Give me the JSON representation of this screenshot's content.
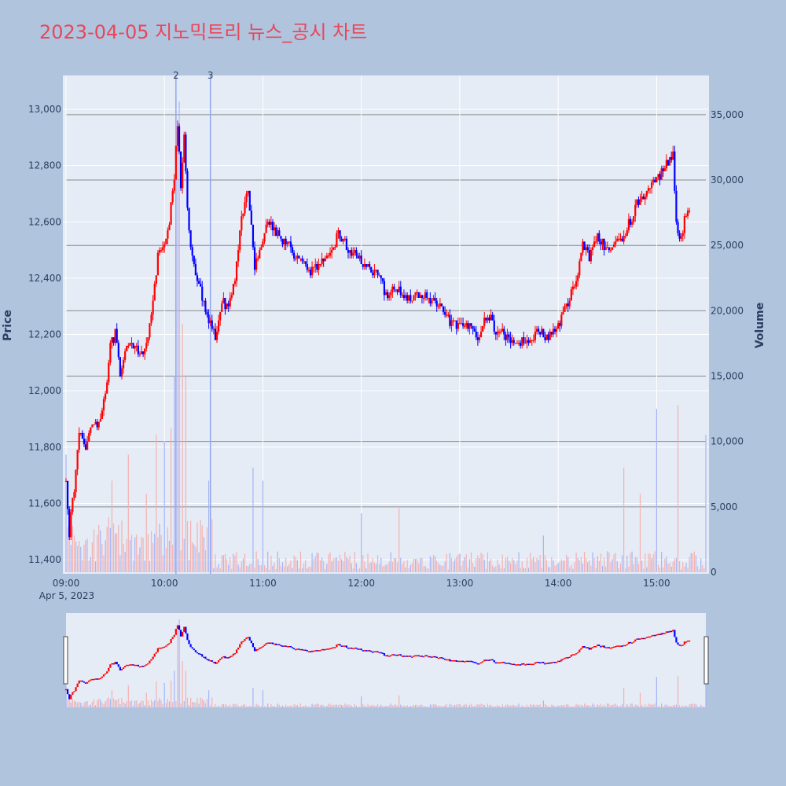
{
  "chart_data": {
    "type": "candlestick",
    "title": "2023-04-05 지노믹트리 뉴스_공시 차트",
    "ylabel": "Price",
    "y2label": "Volume",
    "date_label": "Apr 5, 2023",
    "x_ticks": [
      "09:00",
      "10:00",
      "11:00",
      "12:00",
      "13:00",
      "14:00",
      "15:00"
    ],
    "price_ticks": [
      11400,
      11600,
      11800,
      12000,
      12200,
      12400,
      12600,
      12800,
      13000
    ],
    "price_tick_labels": [
      "11,400",
      "11,600",
      "11,800",
      "12,000",
      "12,200",
      "12,400",
      "12,600",
      "12,800",
      "13,000"
    ],
    "volume_ticks": [
      0,
      5000,
      10000,
      15000,
      20000,
      25000,
      30000,
      35000
    ],
    "volume_tick_labels": [
      "0",
      "5,000",
      "10,000",
      "15,000",
      "20,000",
      "25,000",
      "30,000",
      "35,000"
    ],
    "price_range": [
      11350,
      13120
    ],
    "volume_range": [
      0,
      38000
    ],
    "time_range": [
      "09:00",
      "15:30"
    ],
    "up_color": "#ff0000",
    "down_color": "#0000ff",
    "news_markers": [
      {
        "label": "2",
        "time": "10:07"
      },
      {
        "label": "3",
        "time": "10:28"
      }
    ],
    "price_path": [
      [
        "09:00",
        11700
      ],
      [
        "09:02",
        11500
      ],
      [
        "09:05",
        11650
      ],
      [
        "09:08",
        11850
      ],
      [
        "09:12",
        11800
      ],
      [
        "09:16",
        11900
      ],
      [
        "09:20",
        11880
      ],
      [
        "09:24",
        12000
      ],
      [
        "09:27",
        12150
      ],
      [
        "09:30",
        12200
      ],
      [
        "09:33",
        12050
      ],
      [
        "09:37",
        12150
      ],
      [
        "09:42",
        12170
      ],
      [
        "09:46",
        12130
      ],
      [
        "09:50",
        12200
      ],
      [
        "09:53",
        12300
      ],
      [
        "09:56",
        12480
      ],
      [
        "10:00",
        12500
      ],
      [
        "10:03",
        12600
      ],
      [
        "10:06",
        12750
      ],
      [
        "10:08",
        12950
      ],
      [
        "10:10",
        12720
      ],
      [
        "10:12",
        12900
      ],
      [
        "10:15",
        12550
      ],
      [
        "10:18",
        12450
      ],
      [
        "10:21",
        12380
      ],
      [
        "10:24",
        12300
      ],
      [
        "10:27",
        12250
      ],
      [
        "10:31",
        12180
      ],
      [
        "10:35",
        12330
      ],
      [
        "10:39",
        12280
      ],
      [
        "10:43",
        12400
      ],
      [
        "10:47",
        12630
      ],
      [
        "10:51",
        12700
      ],
      [
        "10:55",
        12450
      ],
      [
        "10:59",
        12520
      ],
      [
        "11:03",
        12600
      ],
      [
        "11:10",
        12550
      ],
      [
        "11:16",
        12510
      ],
      [
        "11:22",
        12460
      ],
      [
        "11:28",
        12430
      ],
      [
        "11:35",
        12440
      ],
      [
        "11:40",
        12470
      ],
      [
        "11:46",
        12560
      ],
      [
        "11:52",
        12500
      ],
      [
        "11:58",
        12480
      ],
      [
        "12:04",
        12440
      ],
      [
        "12:10",
        12400
      ],
      [
        "12:16",
        12340
      ],
      [
        "12:22",
        12370
      ],
      [
        "12:28",
        12320
      ],
      [
        "12:35",
        12340
      ],
      [
        "12:41",
        12330
      ],
      [
        "12:47",
        12300
      ],
      [
        "12:53",
        12250
      ],
      [
        "12:59",
        12220
      ],
      [
        "13:05",
        12230
      ],
      [
        "13:11",
        12200
      ],
      [
        "13:17",
        12270
      ],
      [
        "13:23",
        12210
      ],
      [
        "13:29",
        12190
      ],
      [
        "13:35",
        12170
      ],
      [
        "13:41",
        12180
      ],
      [
        "13:47",
        12210
      ],
      [
        "13:53",
        12190
      ],
      [
        "13:59",
        12220
      ],
      [
        "14:05",
        12290
      ],
      [
        "14:11",
        12400
      ],
      [
        "14:15",
        12520
      ],
      [
        "14:19",
        12480
      ],
      [
        "14:23",
        12550
      ],
      [
        "14:29",
        12500
      ],
      [
        "14:35",
        12520
      ],
      [
        "14:41",
        12560
      ],
      [
        "14:47",
        12650
      ],
      [
        "14:53",
        12700
      ],
      [
        "14:59",
        12740
      ],
      [
        "15:03",
        12780
      ],
      [
        "15:07",
        12820
      ],
      [
        "15:10",
        12850
      ],
      [
        "15:12",
        12600
      ],
      [
        "15:14",
        12520
      ],
      [
        "15:17",
        12600
      ],
      [
        "15:20",
        12650
      ]
    ],
    "volume_spikes": [
      [
        "09:00",
        9000
      ],
      [
        "09:28",
        7000
      ],
      [
        "09:38",
        9000
      ],
      [
        "09:49",
        6000
      ],
      [
        "09:55",
        10500
      ],
      [
        "10:00",
        10000
      ],
      [
        "10:04",
        11000
      ],
      [
        "10:06",
        15000
      ],
      [
        "10:08",
        34000
      ],
      [
        "10:09",
        36000
      ],
      [
        "10:11",
        19000
      ],
      [
        "10:13",
        15000
      ],
      [
        "10:27",
        7000
      ],
      [
        "10:54",
        8000
      ],
      [
        "11:00",
        7000
      ],
      [
        "12:00",
        4500
      ],
      [
        "12:23",
        4900
      ],
      [
        "13:51",
        2800
      ],
      [
        "14:40",
        8000
      ],
      [
        "14:50",
        6000
      ],
      [
        "15:00",
        12500
      ],
      [
        "15:13",
        12800
      ],
      [
        "15:30",
        10500
      ]
    ]
  }
}
